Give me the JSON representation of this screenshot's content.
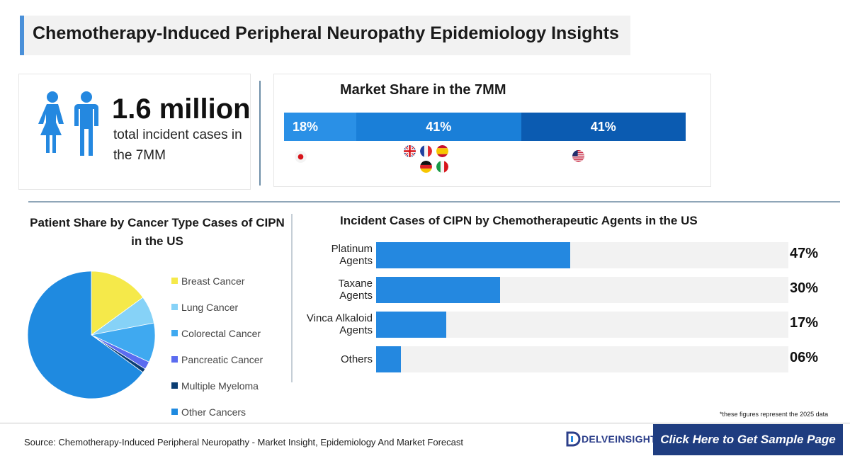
{
  "header": {
    "title": "Chemotherapy-Induced Peripheral Neuropathy Epidemiology Insights"
  },
  "incident": {
    "icon": "male-female-people-icon",
    "value": "1.6 million",
    "caption": "total incident cases in the 7MM"
  },
  "market_share": {
    "title": "Market Share in the 7MM",
    "segments": [
      {
        "label": "18%",
        "value": 18,
        "color": "#2a90e6",
        "flags": [
          "japan"
        ]
      },
      {
        "label": "41%",
        "value": 41,
        "color": "#1a7fd8",
        "flags": [
          "uk",
          "france",
          "spain",
          "germany",
          "italy"
        ]
      },
      {
        "label": "41%",
        "value": 41,
        "color": "#0b5bb1",
        "flags": [
          "usa"
        ]
      }
    ]
  },
  "pie_title": "Patient Share by Cancer Type Cases of CIPN in the US",
  "agents_title": "Incident Cases of CIPN by Chemotherapeutic Agents in the US",
  "chart_data": [
    {
      "type": "pie",
      "title": "Patient Share by Cancer Type Cases of CIPN in the US",
      "categories": [
        "Breast Cancer",
        "Lung Cancer",
        "Colorectal Cancer",
        "Pancreatic Cancer",
        "Multiple Myeloma",
        "Other Cancers"
      ],
      "values": [
        15,
        7,
        10,
        2,
        1,
        65
      ],
      "colors": [
        "#f5e94a",
        "#86d2f7",
        "#3fa9f0",
        "#5b6cf0",
        "#0b3d73",
        "#1f8ae0"
      ],
      "legend": "right"
    },
    {
      "type": "bar",
      "orientation": "horizontal",
      "title": "Incident Cases of CIPN by Chemotherapeutic Agents in the US",
      "categories": [
        "Platinum Agents",
        "Taxane Agents",
        "Vinca Alkaloid Agents",
        "Others"
      ],
      "values": [
        47,
        30,
        17,
        6
      ],
      "value_labels": [
        "47%",
        "30%",
        "17%",
        "06%"
      ],
      "xlim": [
        0,
        100
      ]
    }
  ],
  "footnote": "*these figures represent the 2025 data",
  "footer": {
    "source": "Source: Chemotherapy-Induced Peripheral Neuropathy - Market Insight, Epidemiology And Market Forecast",
    "logo_text": "DELVEINSIGHT",
    "cta_label": "Click Here to Get Sample Page"
  }
}
